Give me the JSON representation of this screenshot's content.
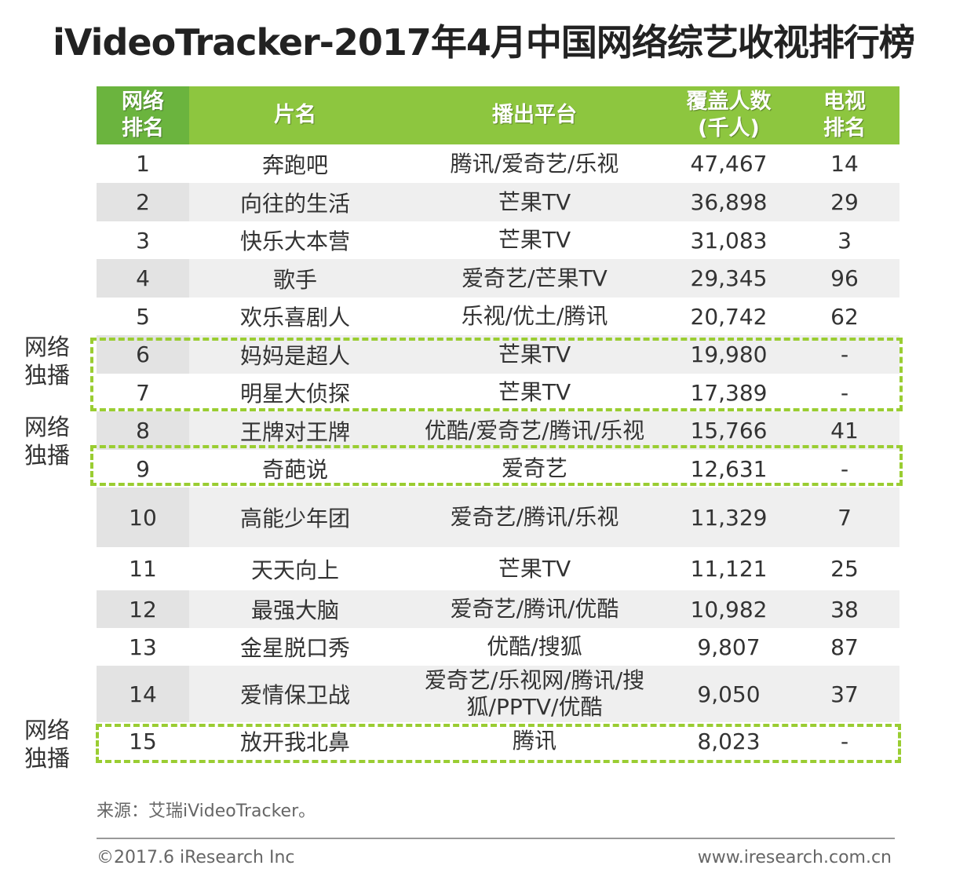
{
  "title": "iVideoTracker-2017年4月中国网络综艺收视排行榜",
  "header": {
    "col0": [
      "网络",
      "排名"
    ],
    "col1": "片名",
    "col2": "播出平台",
    "col3": [
      "覆盖人数",
      "(千人)"
    ],
    "col4": [
      "电视",
      "排名"
    ]
  },
  "rows": [
    {
      "rank": "1",
      "name": "奔跑吧",
      "platform": [
        "腾讯/爱奇艺/乐视"
      ],
      "coverage": "47,467",
      "tv_rank": "14"
    },
    {
      "rank": "2",
      "name": "向往的生活",
      "platform": [
        "芒果TV"
      ],
      "coverage": "36,898",
      "tv_rank": "29"
    },
    {
      "rank": "3",
      "name": "快乐大本营",
      "platform": [
        "芒果TV"
      ],
      "coverage": "31,083",
      "tv_rank": "3"
    },
    {
      "rank": "4",
      "name": "歌手",
      "platform": [
        "爱奇艺/芒果TV"
      ],
      "coverage": "29,345",
      "tv_rank": "96"
    },
    {
      "rank": "5",
      "name": "欢乐喜剧人",
      "platform": [
        "乐视/优土/腾讯"
      ],
      "coverage": "20,742",
      "tv_rank": "62"
    },
    {
      "rank": "6",
      "name": "妈妈是超人",
      "platform": [
        "芒果TV"
      ],
      "coverage": "19,980",
      "tv_rank": "-"
    },
    {
      "rank": "7",
      "name": "明星大侦探",
      "platform": [
        "芒果TV"
      ],
      "coverage": "17,389",
      "tv_rank": "-"
    },
    {
      "rank": "8",
      "name": "王牌对王牌",
      "platform": [
        "优酷/爱奇艺/腾讯/乐视"
      ],
      "coverage": "15,766",
      "tv_rank": "41"
    },
    {
      "rank": "9",
      "name": "奇葩说",
      "platform": [
        "爱奇艺"
      ],
      "coverage": "12,631",
      "tv_rank": "-"
    },
    {
      "rank": "10",
      "name": "高能少年团",
      "platform": [
        "爱奇艺/腾讯/乐视"
      ],
      "coverage": "11,329",
      "tv_rank": "7"
    },
    {
      "rank": "11",
      "name": "天天向上",
      "platform": [
        "芒果TV"
      ],
      "coverage": "11,121",
      "tv_rank": "25"
    },
    {
      "rank": "12",
      "name": "最强大脑",
      "platform": [
        "爱奇艺/腾讯/优酷"
      ],
      "coverage": "10,982",
      "tv_rank": "38"
    },
    {
      "rank": "13",
      "name": "金星脱口秀",
      "platform": [
        "优酷/搜狐"
      ],
      "coverage": "9,807",
      "tv_rank": "87"
    },
    {
      "rank": "14",
      "name": "爱情保卫战",
      "platform": [
        "爱奇艺/乐视网/腾讯/搜",
        "狐/PPTV/优酷"
      ],
      "coverage": "9,050",
      "tv_rank": "37"
    },
    {
      "rank": "15",
      "name": "放开我北鼻",
      "platform": [
        "腾讯"
      ],
      "coverage": "8,023",
      "tv_rank": "-"
    }
  ],
  "side_labels": [
    [
      "网络",
      "独播"
    ],
    [
      "网络",
      "独播"
    ],
    [
      "网络",
      "独播"
    ]
  ],
  "source": "来源：艾瑞iVideoTracker。",
  "copyright": "©2017.6 iResearch Inc",
  "website": "www.iresearch.com.cn",
  "colors": {
    "header_green": "#8dc63f",
    "header_first": "#6bb43e",
    "dash_green": "#9acd32"
  }
}
